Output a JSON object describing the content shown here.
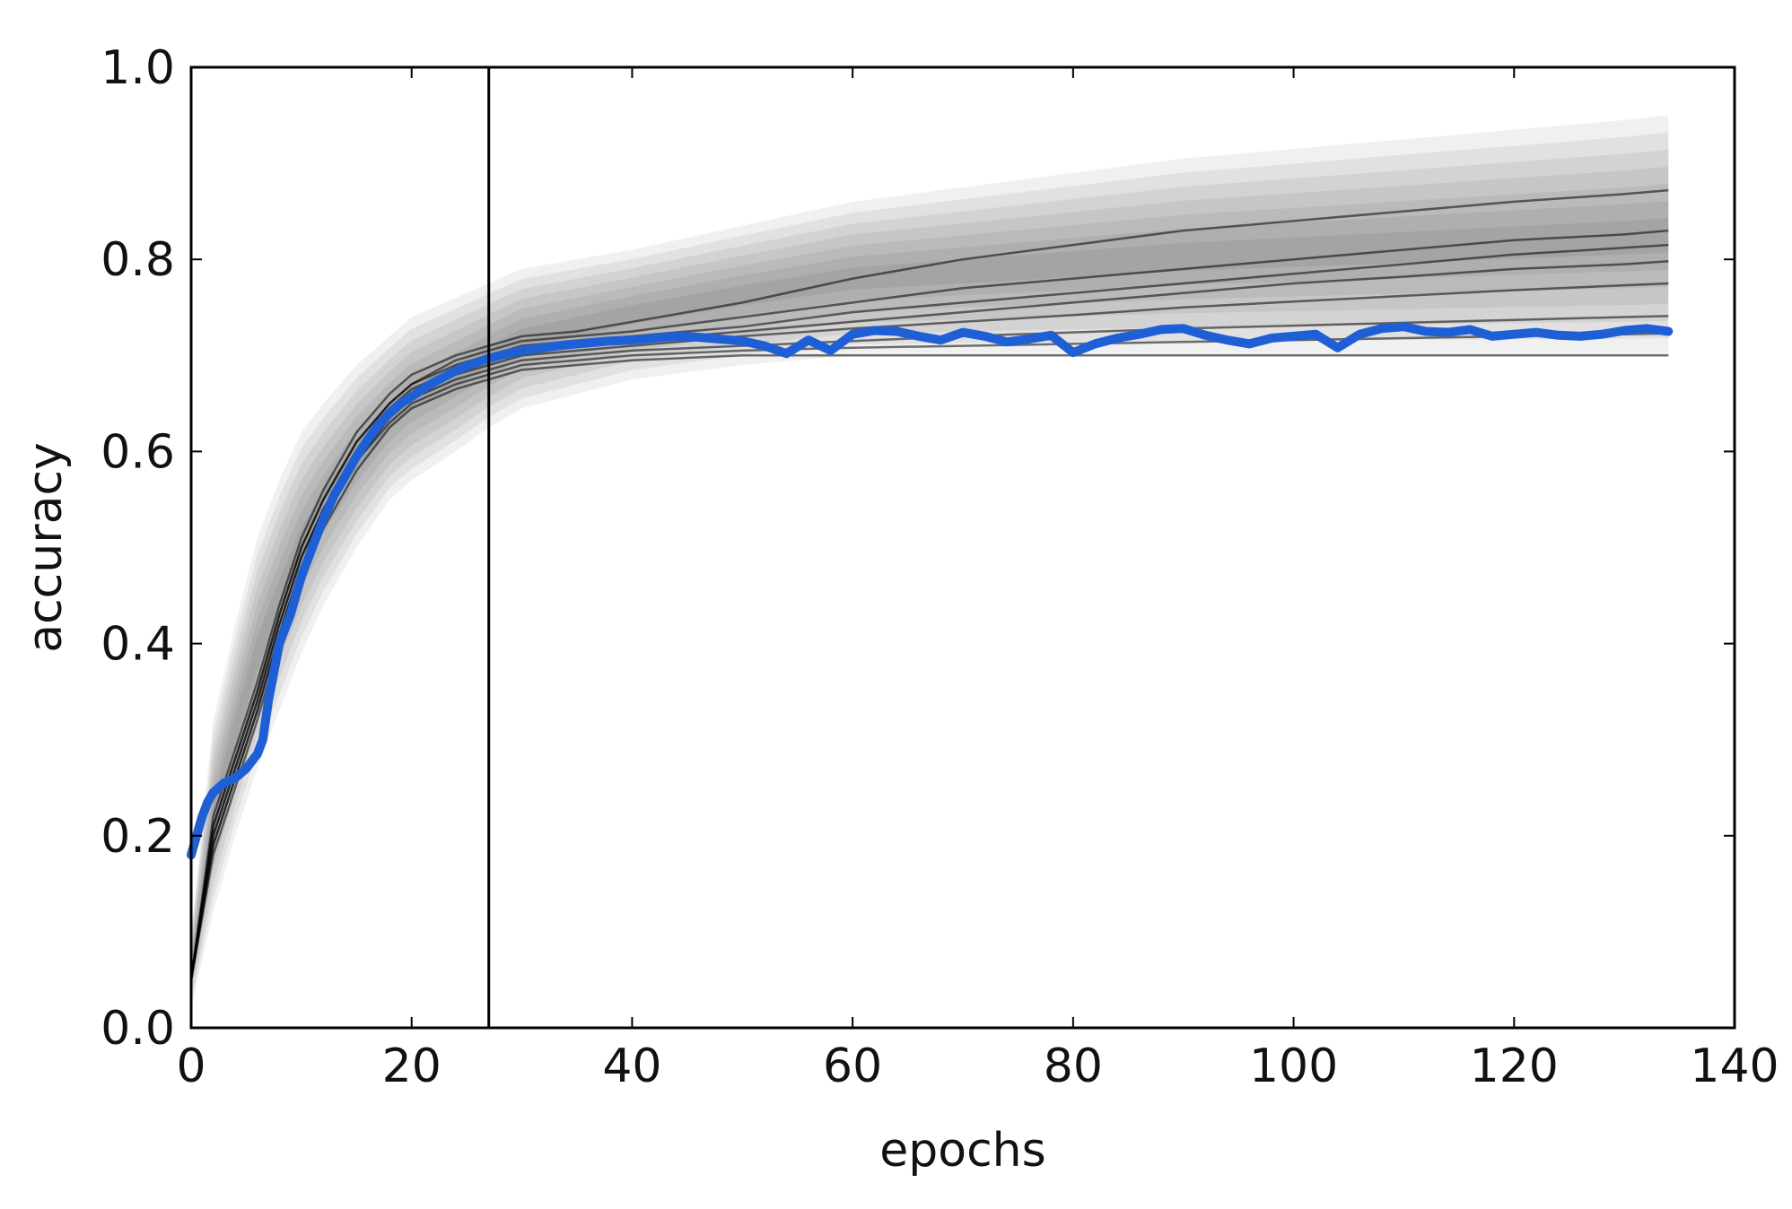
{
  "chart_data": {
    "type": "line",
    "title": "",
    "xlabel": "epochs",
    "ylabel": "accuracy",
    "xlim": [
      0,
      140
    ],
    "ylim": [
      0.0,
      1.0
    ],
    "xticks": [
      0,
      20,
      40,
      60,
      80,
      100,
      120,
      140
    ],
    "xtick_labels": [
      "0",
      "20",
      "40",
      "60",
      "80",
      "100",
      "120",
      "140"
    ],
    "yticks": [
      0.0,
      0.2,
      0.4,
      0.6,
      0.8,
      1.0
    ],
    "ytick_labels": [
      "0.0",
      "0.2",
      "0.4",
      "0.6",
      "0.8",
      "1.0"
    ],
    "grid": false,
    "legend": "none",
    "vertical_line_x": 27,
    "band": {
      "color": "#000000",
      "x": [
        0,
        2,
        4,
        6,
        8,
        10,
        12,
        15,
        18,
        20,
        24,
        27,
        30,
        35,
        40,
        50,
        60,
        70,
        80,
        90,
        100,
        110,
        120,
        130,
        134
      ],
      "upper": [
        0.1,
        0.32,
        0.42,
        0.51,
        0.57,
        0.62,
        0.65,
        0.69,
        0.72,
        0.74,
        0.76,
        0.775,
        0.79,
        0.8,
        0.81,
        0.835,
        0.86,
        0.875,
        0.89,
        0.905,
        0.915,
        0.925,
        0.935,
        0.945,
        0.95
      ],
      "lower": [
        0.02,
        0.12,
        0.2,
        0.27,
        0.33,
        0.39,
        0.44,
        0.5,
        0.55,
        0.57,
        0.6,
        0.625,
        0.645,
        0.66,
        0.675,
        0.69,
        0.7,
        0.7,
        0.7,
        0.7,
        0.7,
        0.7,
        0.7,
        0.7,
        0.7
      ]
    },
    "predictions": {
      "color": "#000000",
      "x": [
        0,
        2,
        4,
        6,
        8,
        10,
        12,
        15,
        18,
        20,
        24,
        27,
        30,
        35,
        40,
        50,
        60,
        70,
        80,
        90,
        100,
        110,
        120,
        130,
        134
      ],
      "series": [
        {
          "values": [
            0.05,
            0.22,
            0.29,
            0.36,
            0.44,
            0.51,
            0.56,
            0.62,
            0.66,
            0.68,
            0.7,
            0.71,
            0.72,
            0.725,
            0.735,
            0.755,
            0.78,
            0.8,
            0.815,
            0.83,
            0.84,
            0.85,
            0.86,
            0.868,
            0.872
          ]
        },
        {
          "values": [
            0.05,
            0.21,
            0.28,
            0.35,
            0.43,
            0.5,
            0.55,
            0.61,
            0.65,
            0.67,
            0.695,
            0.705,
            0.715,
            0.72,
            0.725,
            0.74,
            0.755,
            0.77,
            0.78,
            0.79,
            0.8,
            0.81,
            0.82,
            0.826,
            0.83
          ]
        },
        {
          "values": [
            0.05,
            0.21,
            0.28,
            0.35,
            0.43,
            0.5,
            0.55,
            0.61,
            0.65,
            0.67,
            0.69,
            0.7,
            0.71,
            0.715,
            0.72,
            0.73,
            0.745,
            0.755,
            0.765,
            0.775,
            0.785,
            0.795,
            0.805,
            0.812,
            0.815
          ]
        },
        {
          "values": [
            0.05,
            0.2,
            0.27,
            0.34,
            0.42,
            0.49,
            0.54,
            0.6,
            0.645,
            0.665,
            0.685,
            0.695,
            0.705,
            0.71,
            0.715,
            0.725,
            0.735,
            0.745,
            0.755,
            0.765,
            0.775,
            0.782,
            0.79,
            0.795,
            0.798
          ]
        },
        {
          "values": [
            0.05,
            0.2,
            0.27,
            0.34,
            0.42,
            0.49,
            0.54,
            0.6,
            0.64,
            0.66,
            0.68,
            0.69,
            0.7,
            0.705,
            0.71,
            0.72,
            0.728,
            0.735,
            0.742,
            0.75,
            0.756,
            0.762,
            0.768,
            0.773,
            0.775
          ]
        },
        {
          "values": [
            0.05,
            0.19,
            0.26,
            0.33,
            0.41,
            0.48,
            0.53,
            0.59,
            0.635,
            0.655,
            0.675,
            0.685,
            0.695,
            0.7,
            0.705,
            0.71,
            0.715,
            0.72,
            0.724,
            0.728,
            0.731,
            0.734,
            0.737,
            0.74,
            0.741
          ]
        },
        {
          "values": [
            0.05,
            0.19,
            0.26,
            0.33,
            0.41,
            0.48,
            0.53,
            0.59,
            0.63,
            0.65,
            0.67,
            0.68,
            0.69,
            0.695,
            0.7,
            0.705,
            0.708,
            0.71,
            0.712,
            0.714,
            0.716,
            0.718,
            0.72,
            0.722,
            0.723
          ]
        },
        {
          "values": [
            0.05,
            0.18,
            0.25,
            0.32,
            0.4,
            0.47,
            0.52,
            0.58,
            0.625,
            0.645,
            0.665,
            0.675,
            0.685,
            0.69,
            0.695,
            0.7,
            0.7,
            0.7,
            0.7,
            0.7,
            0.7,
            0.7,
            0.7,
            0.7,
            0.7
          ]
        }
      ]
    },
    "observed": {
      "color": "#1f5fd6",
      "x": [
        0,
        0.5,
        1,
        1.5,
        2,
        3,
        4,
        5,
        6,
        6.5,
        7,
        8,
        9,
        10,
        11,
        12,
        13,
        14,
        15,
        16,
        17,
        18,
        19,
        20,
        21,
        22,
        23,
        24,
        25,
        26,
        27,
        28,
        30,
        32,
        34,
        36,
        38,
        40,
        42,
        44,
        46,
        48,
        50,
        52,
        54,
        56,
        58,
        60,
        62,
        64,
        66,
        68,
        70,
        72,
        74,
        76,
        78,
        80,
        82,
        84,
        86,
        88,
        90,
        92,
        94,
        96,
        98,
        100,
        102,
        104,
        106,
        108,
        110,
        112,
        114,
        116,
        118,
        120,
        122,
        124,
        126,
        128,
        130,
        132,
        134
      ],
      "values": [
        0.18,
        0.2,
        0.22,
        0.235,
        0.245,
        0.255,
        0.26,
        0.27,
        0.285,
        0.3,
        0.34,
        0.4,
        0.43,
        0.47,
        0.5,
        0.53,
        0.555,
        0.575,
        0.595,
        0.612,
        0.628,
        0.64,
        0.65,
        0.657,
        0.665,
        0.672,
        0.678,
        0.684,
        0.689,
        0.693,
        0.697,
        0.7,
        0.705,
        0.708,
        0.711,
        0.713,
        0.715,
        0.716,
        0.718,
        0.72,
        0.719,
        0.717,
        0.715,
        0.71,
        0.702,
        0.716,
        0.705,
        0.722,
        0.726,
        0.725,
        0.72,
        0.716,
        0.724,
        0.72,
        0.714,
        0.717,
        0.721,
        0.703,
        0.712,
        0.718,
        0.722,
        0.727,
        0.728,
        0.721,
        0.716,
        0.712,
        0.718,
        0.72,
        0.722,
        0.708,
        0.722,
        0.728,
        0.73,
        0.725,
        0.724,
        0.727,
        0.72,
        0.722,
        0.724,
        0.721,
        0.72,
        0.722,
        0.726,
        0.728,
        0.725
      ]
    }
  }
}
